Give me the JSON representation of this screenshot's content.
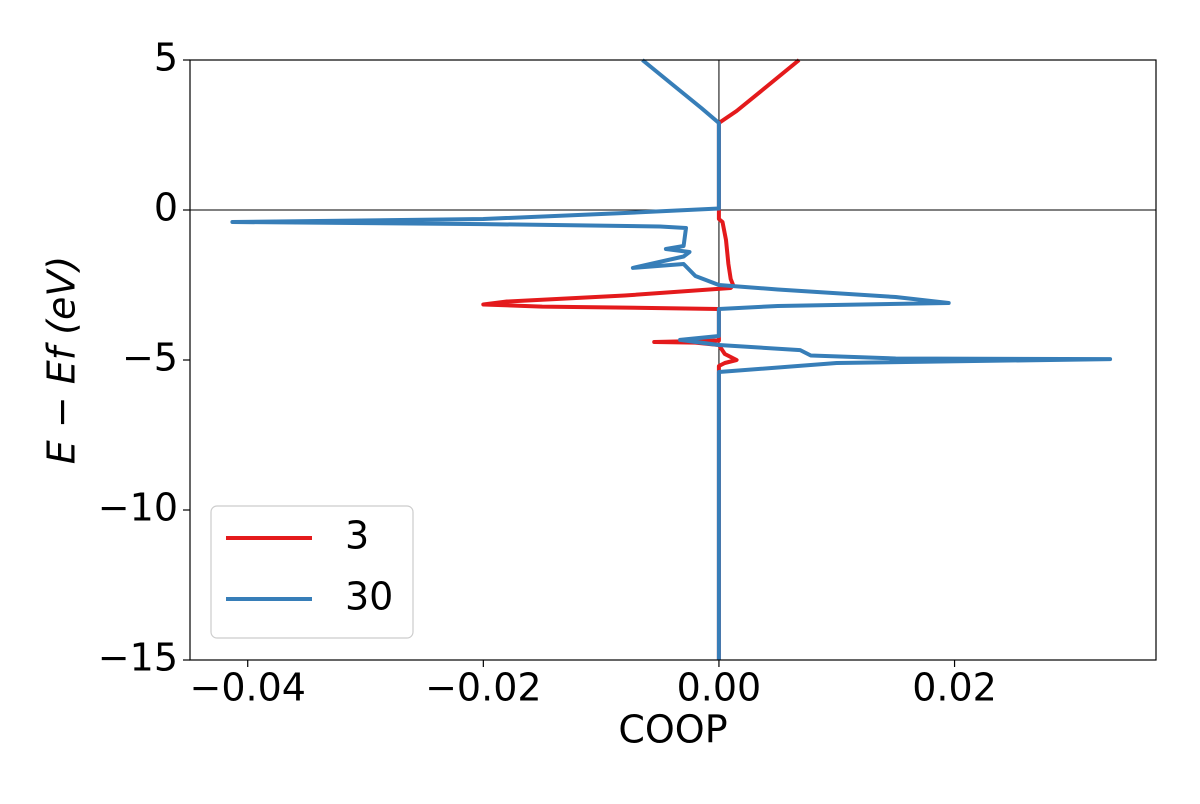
{
  "chart_data": {
    "type": "line",
    "xlabel": "COOP",
    "ylabel": "E − Ef (eV)",
    "xlim": [
      -0.0449,
      0.0371
    ],
    "ylim": [
      -15,
      5
    ],
    "xticks": [
      {
        "value": -0.04,
        "label": "−0.04"
      },
      {
        "value": -0.02,
        "label": "−0.02"
      },
      {
        "value": 0,
        "label": "0.00"
      },
      {
        "value": 0.02,
        "label": "0.02"
      }
    ],
    "yticks": [
      5,
      0,
      {
        "value": -5,
        "label": "−5"
      },
      {
        "value": -10,
        "label": "−10"
      },
      {
        "value": -15,
        "label": "−15"
      }
    ],
    "zero_lines": true,
    "legend": "lower left",
    "series": [
      {
        "name": "3",
        "color": "#e41a1c",
        "x": [
          0.0068,
          0.004,
          0.0015,
          0,
          0,
          0,
          0.0003,
          0.0006,
          0.0008,
          0.001,
          0.0012,
          0.001,
          -0.008,
          -0.018,
          -0.02,
          -0.015,
          -0.005,
          0,
          0,
          -0.0055,
          -0.002,
          0,
          0.0005,
          0.0015,
          0.0005,
          0,
          0
        ],
        "y": [
          5,
          4.1,
          3.3,
          2.9,
          0.05,
          -0.3,
          -0.4,
          -1.0,
          -1.8,
          -2.3,
          -2.5,
          -2.6,
          -2.85,
          -3.05,
          -3.15,
          -3.22,
          -3.27,
          -3.3,
          -4.35,
          -4.4,
          -4.42,
          -4.5,
          -4.8,
          -5.0,
          -5.1,
          -5.2,
          -15
        ]
      },
      {
        "name": "30",
        "color": "#377eb8",
        "x": [
          -0.0065,
          -0.004,
          -0.0015,
          0,
          0,
          -0.008,
          -0.02,
          -0.0413,
          -0.02,
          -0.005,
          -0.0028,
          -0.003,
          -0.0045,
          -0.0025,
          -0.003,
          -0.0073,
          -0.003,
          -0.002,
          0,
          0.005,
          0.015,
          0.0195,
          0.005,
          0,
          0,
          -0.0033,
          0,
          0.0069,
          0.0078,
          0.015,
          0.0332,
          0.01,
          0,
          0
        ],
        "y": [
          5,
          4.2,
          3.4,
          2.9,
          0.05,
          -0.1,
          -0.3,
          -0.4,
          -0.47,
          -0.55,
          -0.6,
          -1.2,
          -1.3,
          -1.4,
          -1.55,
          -1.93,
          -1.8,
          -2.2,
          -2.5,
          -2.65,
          -2.9,
          -3.1,
          -3.2,
          -3.3,
          -4.2,
          -4.33,
          -4.5,
          -4.67,
          -4.85,
          -4.95,
          -4.97,
          -5.1,
          -5.4,
          -15
        ]
      }
    ]
  }
}
